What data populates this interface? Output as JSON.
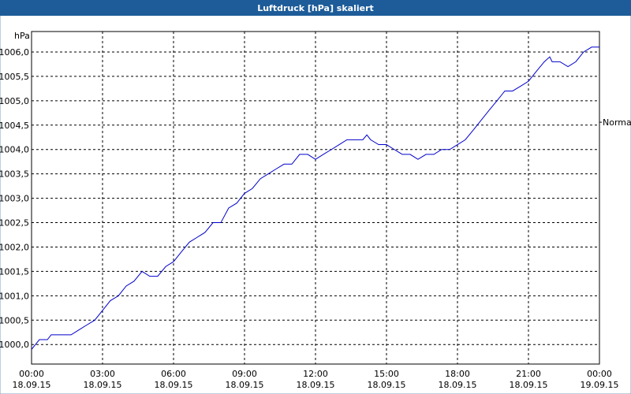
{
  "chart_data": {
    "type": "line",
    "title": "Luftdruck [hPa] skaliert",
    "y_label": "hPa",
    "reference": {
      "label": "Normal",
      "value": 1004.56
    },
    "grid": true,
    "xlim": [
      0,
      24
    ],
    "xticks": [
      {
        "value": 0,
        "label": "00:00\n18.09.15"
      },
      {
        "value": 3,
        "label": "03:00\n18.09.15"
      },
      {
        "value": 6,
        "label": "06:00\n18.09.15"
      },
      {
        "value": 9,
        "label": "09:00\n18.09.15"
      },
      {
        "value": 12,
        "label": "12:00\n18.09.15"
      },
      {
        "value": 15,
        "label": "15:00\n18.09.15"
      },
      {
        "value": 18,
        "label": "18:00\n18.09.15"
      },
      {
        "value": 21,
        "label": "21:00\n18.09.15"
      },
      {
        "value": 24,
        "label": "00:00\n19.09.15"
      }
    ],
    "ylim": [
      999.6,
      1006.42
    ],
    "yticks": [
      {
        "value": 1000,
        "label": "1000,0"
      },
      {
        "value": 1000.5,
        "label": "1000,5"
      },
      {
        "value": 1001,
        "label": "1001,0"
      },
      {
        "value": 1001.5,
        "label": "1001,5"
      },
      {
        "value": 1002,
        "label": "1002,0"
      },
      {
        "value": 1002.5,
        "label": "1002,5"
      },
      {
        "value": 1003,
        "label": "1003,0"
      },
      {
        "value": 1003.5,
        "label": "1003,5"
      },
      {
        "value": 1004,
        "label": "1004,0"
      },
      {
        "value": 1004.5,
        "label": "1004,5"
      },
      {
        "value": 1005,
        "label": "1005,0"
      },
      {
        "value": 1005.5,
        "label": "1005,5"
      },
      {
        "value": 1006,
        "label": "1006,0"
      }
    ],
    "x": [
      0,
      0.33,
      0.67,
      0.83,
      1,
      1.67,
      2,
      2.33,
      2.67,
      3,
      3.33,
      3.67,
      4,
      4.33,
      4.67,
      5,
      5.33,
      5.67,
      6,
      6.33,
      6.67,
      7,
      7.33,
      7.67,
      8,
      8.33,
      8.67,
      9,
      9.33,
      9.67,
      10,
      10.33,
      10.67,
      11,
      11.33,
      11.67,
      12,
      12.33,
      12.67,
      13,
      13.33,
      13.67,
      14,
      14.17,
      14.33,
      14.67,
      15,
      15.33,
      15.67,
      16,
      16.33,
      16.67,
      17,
      17.33,
      17.67,
      18,
      18.33,
      18.67,
      19,
      19.33,
      19.67,
      20,
      20.33,
      20.67,
      21,
      21.33,
      21.67,
      21.9,
      22,
      22.33,
      22.67,
      23,
      23.33,
      23.67,
      24
    ],
    "series": [
      {
        "color": "#0000cc",
        "values": [
          999.9,
          1000.1,
          1000.1,
          1000.2,
          1000.2,
          1000.2,
          1000.3,
          1000.4,
          1000.5,
          1000.7,
          1000.9,
          1001.0,
          1001.2,
          1001.3,
          1001.5,
          1001.4,
          1001.4,
          1001.6,
          1001.7,
          1001.9,
          1002.1,
          1002.2,
          1002.3,
          1002.5,
          1002.5,
          1002.8,
          1002.9,
          1003.1,
          1003.2,
          1003.4,
          1003.5,
          1003.6,
          1003.7,
          1003.7,
          1003.9,
          1003.9,
          1003.8,
          1003.9,
          1004.0,
          1004.1,
          1004.2,
          1004.2,
          1004.2,
          1004.3,
          1004.2,
          1004.1,
          1004.1,
          1004.0,
          1003.9,
          1003.9,
          1003.8,
          1003.9,
          1003.9,
          1004.0,
          1004.0,
          1004.1,
          1004.2,
          1004.4,
          1004.6,
          1004.8,
          1005.0,
          1005.2,
          1005.2,
          1005.3,
          1005.4,
          1005.6,
          1005.8,
          1005.9,
          1005.8,
          1005.8,
          1005.7,
          1005.8,
          1006.0,
          1006.1,
          1006.1
        ]
      }
    ]
  }
}
